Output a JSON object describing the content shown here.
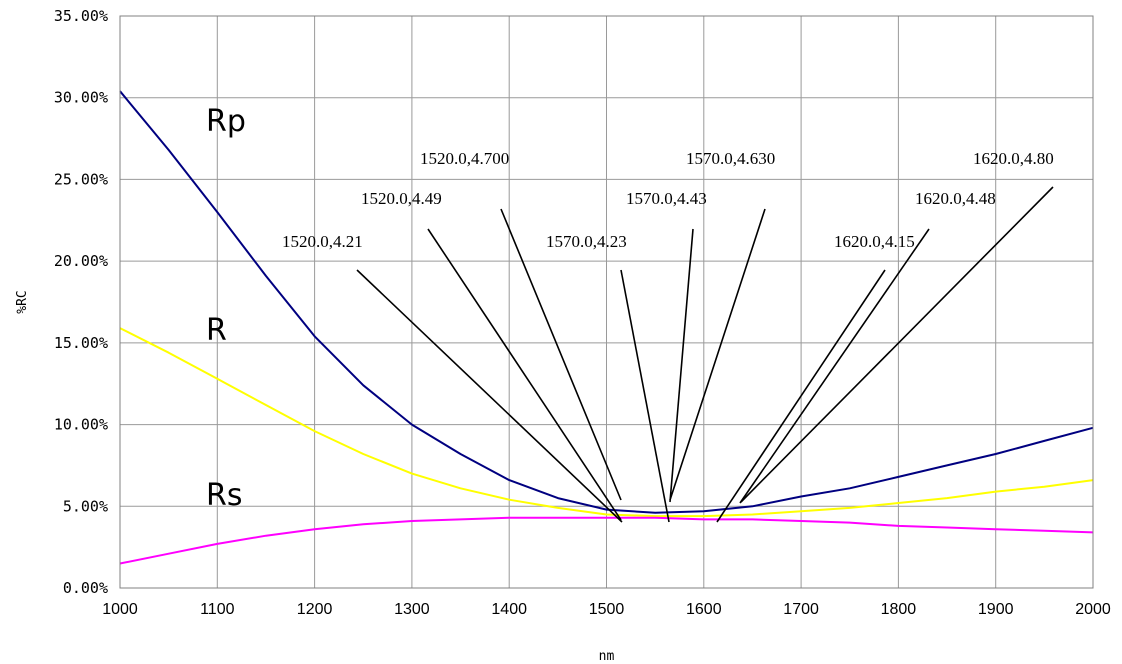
{
  "chart_data": {
    "type": "line",
    "xlabel": "nm",
    "ylabel": "%RC",
    "xlim": [
      1000,
      2000
    ],
    "ylim": [
      0,
      35
    ],
    "x_ticks": [
      "1000",
      "1100",
      "1200",
      "1300",
      "1400",
      "1500",
      "1600",
      "1700",
      "1800",
      "1900",
      "2000"
    ],
    "y_ticks": [
      "0.00%",
      "5.00%",
      "10.00%",
      "15.00%",
      "20.00%",
      "25.00%",
      "30.00%",
      "35.00%"
    ],
    "grid": true,
    "legend": "none",
    "x": [
      1000,
      1050,
      1100,
      1150,
      1200,
      1250,
      1300,
      1350,
      1400,
      1450,
      1500,
      1550,
      1600,
      1650,
      1700,
      1750,
      1800,
      1850,
      1900,
      1950,
      2000
    ],
    "series": [
      {
        "name": "Rp",
        "color": "#000080",
        "values": [
          30.4,
          26.8,
          23.0,
          19.1,
          15.4,
          12.4,
          10.0,
          8.2,
          6.6,
          5.5,
          4.8,
          4.6,
          4.7,
          5.0,
          5.6,
          6.1,
          6.8,
          7.5,
          8.2,
          9.0,
          9.8
        ]
      },
      {
        "name": "R",
        "color": "#FFFF00",
        "values": [
          15.9,
          14.4,
          12.8,
          11.2,
          9.6,
          8.2,
          7.0,
          6.1,
          5.4,
          4.9,
          4.5,
          4.4,
          4.4,
          4.5,
          4.7,
          4.9,
          5.2,
          5.5,
          5.9,
          6.2,
          6.6
        ]
      },
      {
        "name": "Rs",
        "color": "#FF00FF",
        "values": [
          1.5,
          2.1,
          2.7,
          3.2,
          3.6,
          3.9,
          4.1,
          4.2,
          4.3,
          4.3,
          4.3,
          4.3,
          4.2,
          4.2,
          4.1,
          4.0,
          3.8,
          3.7,
          3.6,
          3.5,
          3.4
        ]
      }
    ],
    "annotations": [
      {
        "text": "1520.0,4.21",
        "x": 1520,
        "y": 4.21
      },
      {
        "text": "1520.0,4.49",
        "x": 1520,
        "y": 4.49
      },
      {
        "text": "1520.0,4.700",
        "x": 1520,
        "y": 4.7
      },
      {
        "text": "1570.0,4.23",
        "x": 1570,
        "y": 4.23
      },
      {
        "text": "1570.0,4.43",
        "x": 1570,
        "y": 4.43
      },
      {
        "text": "1570.0,4.630",
        "x": 1570,
        "y": 4.63
      },
      {
        "text": "1620.0,4.15",
        "x": 1620,
        "y": 4.15
      },
      {
        "text": "1620.0,4.48",
        "x": 1620,
        "y": 4.48
      },
      {
        "text": "1620.0,4.80",
        "x": 1620,
        "y": 4.8
      }
    ]
  }
}
